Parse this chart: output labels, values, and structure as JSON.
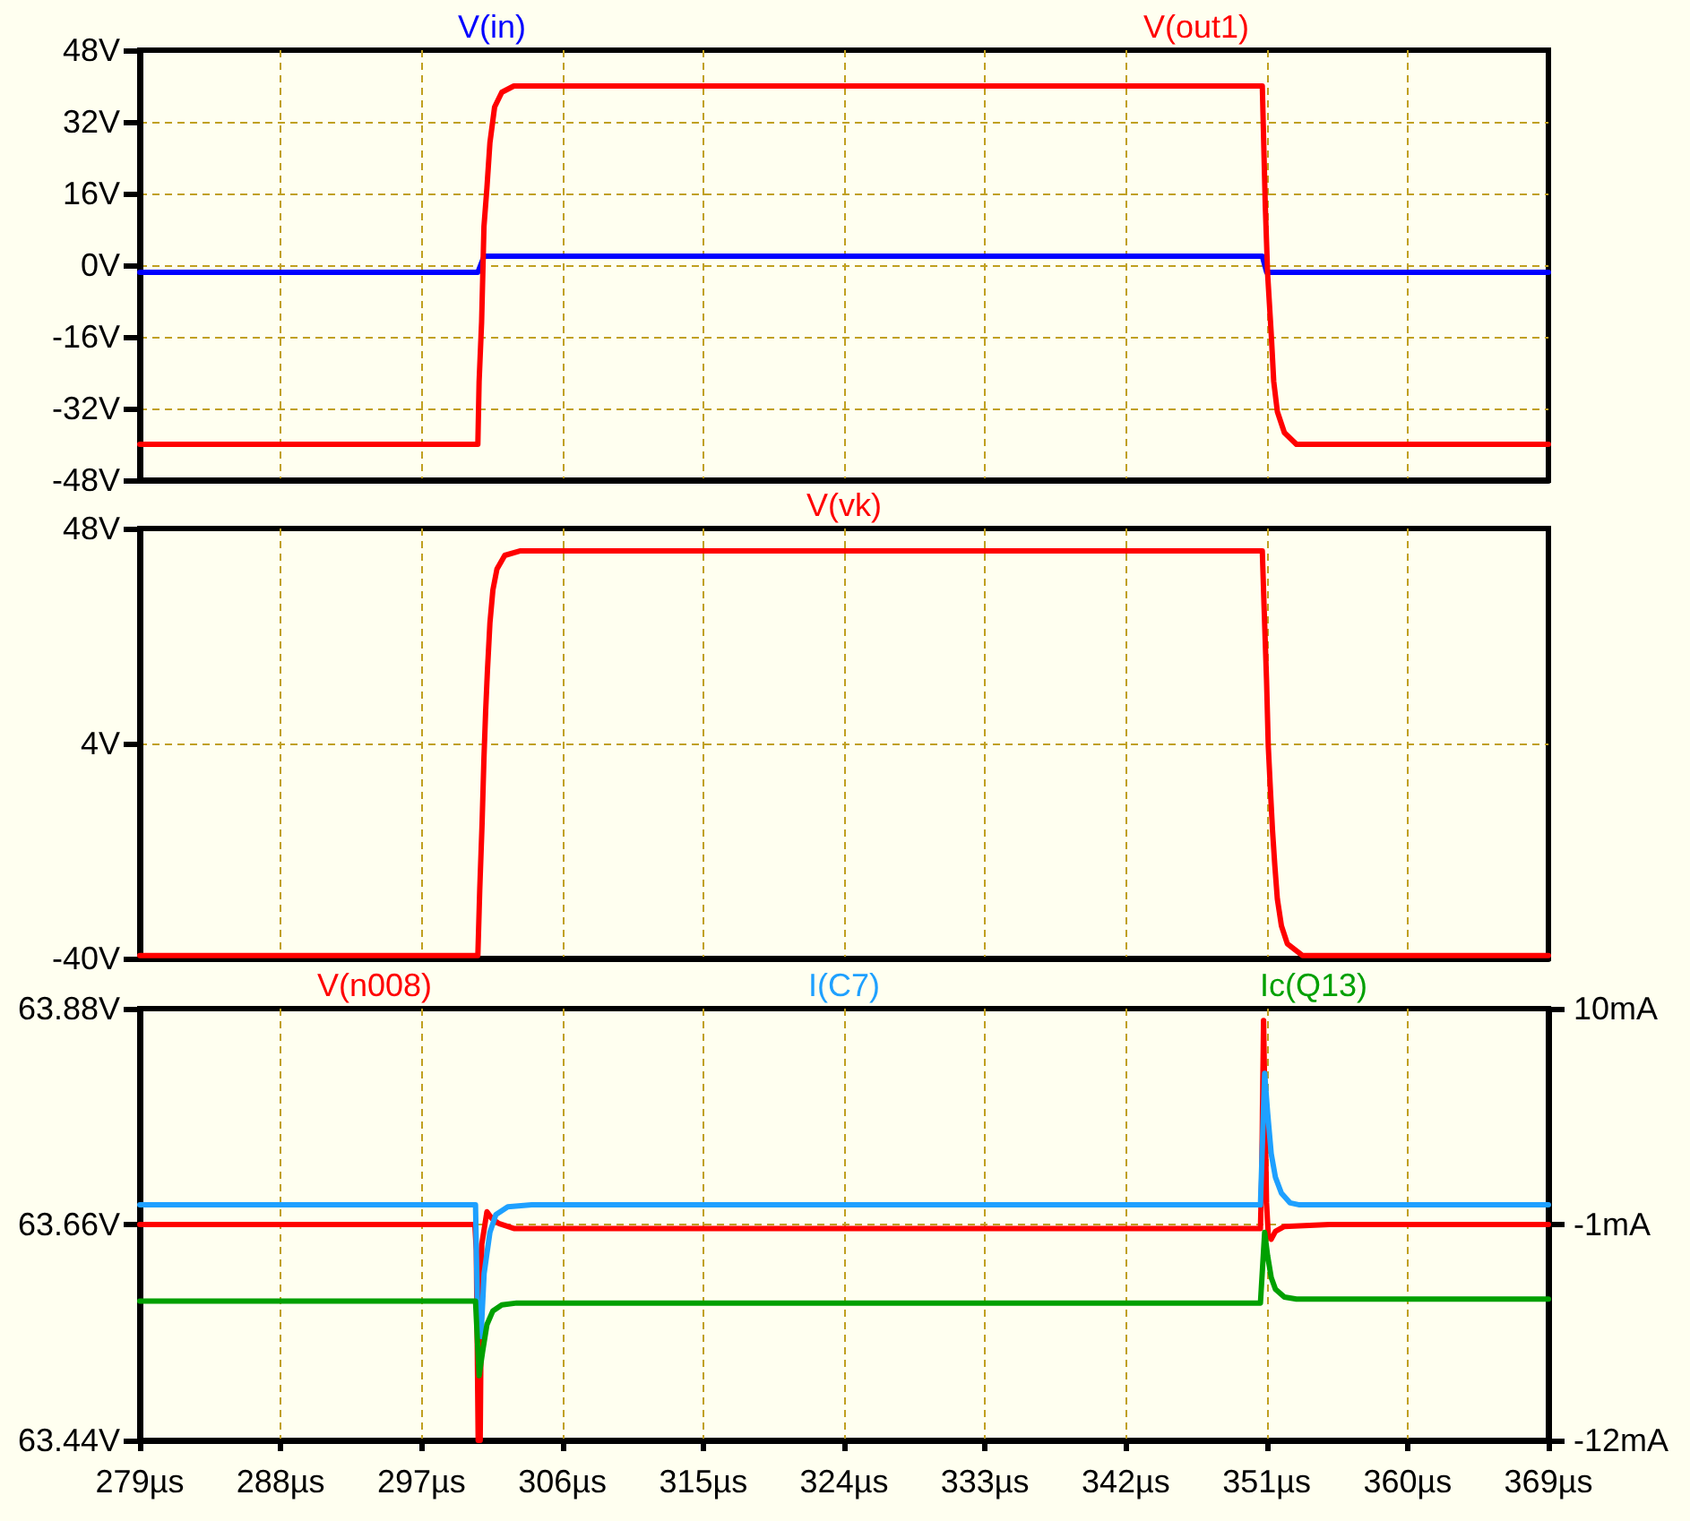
{
  "chart_data": [
    {
      "type": "line",
      "series": [
        {
          "name": "V(in)",
          "color": "#0000ff",
          "x": [
            279,
            300.6,
            301.0,
            350.72,
            351.0,
            369
          ],
          "values": [
            -1.6,
            -1.6,
            2,
            2,
            -1.6,
            -1.6
          ]
        },
        {
          "name": "V(out1)",
          "color": "#ff0000",
          "x": [
            279,
            300.6,
            300.68,
            300.84,
            300.99,
            301.18,
            301.37,
            301.67,
            302.13,
            302.9,
            350.72,
            350.8,
            350.91,
            351.06,
            351.29,
            351.45,
            351.68,
            352.13,
            352.9,
            369
          ],
          "values": [
            -40,
            -40,
            -26,
            -12.7,
            8.6,
            17.3,
            27.3,
            35.3,
            38.6,
            40,
            40,
            28.7,
            13.3,
            -2,
            -15.4,
            -26,
            -32.7,
            -37.4,
            -40,
            -40
          ]
        }
      ],
      "xlim": [
        279,
        369
      ],
      "xticks": [
        {
          "value": 279,
          "label": null
        },
        {
          "value": 288,
          "label": null
        },
        {
          "value": 297,
          "label": null
        },
        {
          "value": 306,
          "label": null
        },
        {
          "value": 315,
          "label": null
        },
        {
          "value": 324,
          "label": null
        },
        {
          "value": 333,
          "label": null
        },
        {
          "value": 342,
          "label": null
        },
        {
          "value": 351,
          "label": null
        },
        {
          "value": 360,
          "label": null
        },
        {
          "value": 369,
          "label": null
        }
      ],
      "ylim": [
        -48,
        48
      ],
      "yticks": [
        {
          "value": -48,
          "label": "-48V"
        },
        {
          "value": -32,
          "label": "-32V"
        },
        {
          "value": -16,
          "label": "-16V"
        },
        {
          "value": 0,
          "label": "0V"
        },
        {
          "value": 16,
          "label": "16V"
        },
        {
          "value": 32,
          "label": "32V"
        },
        {
          "value": 48,
          "label": "48V"
        }
      ],
      "grid": true,
      "legend": "top",
      "tick_labels": "y"
    },
    {
      "type": "line",
      "series": [
        {
          "name": "V(vk)",
          "color": "#ff0000",
          "x": [
            279,
            300.6,
            300.72,
            300.87,
            300.99,
            301.1,
            301.21,
            301.37,
            301.56,
            301.82,
            302.32,
            303.28,
            350.72,
            350.83,
            350.99,
            351.1,
            351.25,
            351.37,
            351.52,
            351.68,
            351.94,
            352.32,
            353.28,
            369
          ],
          "values": [
            -39.4,
            -39.4,
            -26,
            -12.4,
            1.1,
            10.8,
            18.8,
            28.6,
            35.4,
            39.7,
            42.5,
            43.4,
            43.4,
            32.3,
            17,
            3.5,
            -6.3,
            -13.7,
            -21,
            -27.8,
            -33.3,
            -37,
            -39.4,
            -39.4
          ]
        }
      ],
      "xlim": [
        279,
        369
      ],
      "xticks": [
        {
          "value": 279,
          "label": null
        },
        {
          "value": 288,
          "label": null
        },
        {
          "value": 297,
          "label": null
        },
        {
          "value": 306,
          "label": null
        },
        {
          "value": 315,
          "label": null
        },
        {
          "value": 324,
          "label": null
        },
        {
          "value": 333,
          "label": null
        },
        {
          "value": 342,
          "label": null
        },
        {
          "value": 351,
          "label": null
        },
        {
          "value": 360,
          "label": null
        },
        {
          "value": 369,
          "label": null
        }
      ],
      "ylim": [
        -40,
        48
      ],
      "yticks": [
        {
          "value": -40,
          "label": "-40V"
        },
        {
          "value": 4,
          "label": "4V"
        },
        {
          "value": 48,
          "label": "48V"
        }
      ],
      "grid": true,
      "legend": "top",
      "tick_labels": "y"
    },
    {
      "type": "line",
      "series": [
        {
          "name": "V(n008)",
          "color": "#ff0000",
          "x": [
            279,
            300.41,
            300.5,
            300.62,
            300.75,
            300.85,
            301.18,
            301.5,
            301.94,
            302.9,
            350.6,
            350.68,
            350.8,
            350.99,
            351.1,
            351.29,
            351.56,
            352.13,
            355,
            369
          ],
          "values": [
            63.66,
            63.66,
            63.634,
            63.44,
            63.44,
            63.64,
            63.673,
            63.666,
            63.661,
            63.656,
            63.656,
            63.707,
            63.868,
            63.682,
            63.65,
            63.645,
            63.653,
            63.658,
            63.66,
            63.66
          ]
        },
        {
          "name": "I(C7)",
          "color": "#1ea0ff",
          "axis": "y2",
          "x": [
            279,
            300.45,
            300.6,
            300.8,
            301.0,
            301.37,
            301.75,
            302.51,
            304.04,
            350.6,
            350.87,
            351.06,
            351.29,
            351.56,
            351.94,
            352.5,
            353.1,
            369
          ],
          "values": [
            0,
            0,
            -6.3,
            -6.7,
            -3.5,
            -1.4,
            -0.5,
            -0.1,
            0,
            0,
            6.7,
            4.7,
            2.6,
            1.4,
            0.6,
            0.1,
            0,
            0
          ]
        },
        {
          "name": "Ic(Q13)",
          "color": "#00a000",
          "axis": "y2",
          "x": [
            279,
            300.45,
            300.68,
            300.9,
            301.18,
            301.56,
            302.13,
            303.08,
            350.6,
            350.87,
            351.06,
            351.29,
            351.56,
            352.13,
            352.9,
            369
          ],
          "values": [
            -4.9,
            -4.9,
            -8.7,
            -7.5,
            -6.1,
            -5.4,
            -5.1,
            -5.0,
            -5.0,
            -1.4,
            -2.6,
            -3.7,
            -4.3,
            -4.7,
            -4.8,
            -4.8
          ]
        }
      ],
      "xlim": [
        279,
        369
      ],
      "xticks": [
        {
          "value": 279,
          "label": "279µs"
        },
        {
          "value": 288,
          "label": "288µs"
        },
        {
          "value": 297,
          "label": "297µs"
        },
        {
          "value": 306,
          "label": "306µs"
        },
        {
          "value": 315,
          "label": "315µs"
        },
        {
          "value": 324,
          "label": "324µs"
        },
        {
          "value": 333,
          "label": "333µs"
        },
        {
          "value": 342,
          "label": "342µs"
        },
        {
          "value": 351,
          "label": "351µs"
        },
        {
          "value": 360,
          "label": "360µs"
        },
        {
          "value": 369,
          "label": "369µs"
        }
      ],
      "ylim": [
        63.44,
        63.88
      ],
      "yticks": [
        {
          "value": 63.44,
          "label": "63.44V"
        },
        {
          "value": 63.66,
          "label": "63.66V"
        },
        {
          "value": 63.88,
          "label": "63.88V"
        }
      ],
      "y2lim": [
        -12,
        10
      ],
      "y2ticks": [
        {
          "value": -12,
          "label": "-12mA"
        },
        {
          "value": -1,
          "label": "-1mA"
        },
        {
          "value": 10,
          "label": "10mA"
        }
      ],
      "grid": true,
      "legend": "top"
    }
  ]
}
